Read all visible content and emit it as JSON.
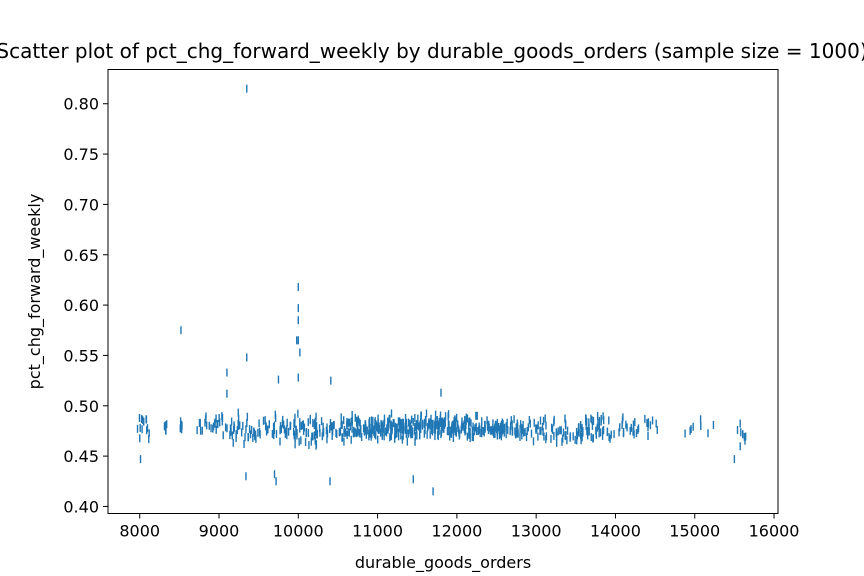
{
  "chart_data": {
    "type": "scatter",
    "title": "Scatter plot of pct_chg_forward_weekly by durable_goods_orders (sample size = 1000)",
    "xlabel": "durable_goods_orders",
    "ylabel": "pct_chg_forward_weekly",
    "xlim": [
      7600,
      16050
    ],
    "ylim": [
      0.393,
      0.834
    ],
    "xticks": [
      8000,
      9000,
      10000,
      11000,
      12000,
      13000,
      14000,
      15000,
      16000
    ],
    "xtick_labels": [
      "8000",
      "9000",
      "10000",
      "11000",
      "12000",
      "13000",
      "14000",
      "15000",
      "16000"
    ],
    "yticks": [
      0.4,
      0.45,
      0.5,
      0.55,
      0.6,
      0.65,
      0.7,
      0.75,
      0.8
    ],
    "ytick_labels": [
      "0.40",
      "0.45",
      "0.50",
      "0.55",
      "0.60",
      "0.65",
      "0.70",
      "0.75",
      "0.80"
    ],
    "grid": false,
    "marker": "|",
    "color": "#1f77b4",
    "outliers": [
      {
        "x": 9350,
        "y": 0.815
      },
      {
        "x": 10000,
        "y": 0.618
      },
      {
        "x": 10000,
        "y": 0.597
      },
      {
        "x": 10000,
        "y": 0.585
      },
      {
        "x": 10000,
        "y": 0.565
      },
      {
        "x": 9980,
        "y": 0.565
      },
      {
        "x": 10020,
        "y": 0.553
      },
      {
        "x": 8520,
        "y": 0.575
      },
      {
        "x": 9350,
        "y": 0.548
      },
      {
        "x": 9100,
        "y": 0.533
      },
      {
        "x": 9100,
        "y": 0.512
      },
      {
        "x": 9750,
        "y": 0.526
      },
      {
        "x": 10000,
        "y": 0.528
      },
      {
        "x": 10410,
        "y": 0.525
      },
      {
        "x": 11800,
        "y": 0.513
      },
      {
        "x": 9700,
        "y": 0.432
      },
      {
        "x": 9720,
        "y": 0.425
      },
      {
        "x": 9340,
        "y": 0.43
      },
      {
        "x": 10400,
        "y": 0.425
      },
      {
        "x": 11450,
        "y": 0.427
      },
      {
        "x": 11700,
        "y": 0.415
      },
      {
        "x": 8010,
        "y": 0.447
      },
      {
        "x": 15500,
        "y": 0.447
      }
    ],
    "density_bins": [
      {
        "x0": 7950,
        "x1": 8150,
        "n": 14,
        "center": 0.479,
        "spread": 0.012
      },
      {
        "x0": 8300,
        "x1": 8350,
        "n": 8,
        "center": 0.477,
        "spread": 0.006
      },
      {
        "x0": 8500,
        "x1": 8550,
        "n": 5,
        "center": 0.479,
        "spread": 0.004
      },
      {
        "x0": 8700,
        "x1": 8950,
        "n": 14,
        "center": 0.482,
        "spread": 0.007
      },
      {
        "x0": 8950,
        "x1": 9250,
        "n": 30,
        "center": 0.478,
        "spread": 0.011
      },
      {
        "x0": 9250,
        "x1": 9500,
        "n": 20,
        "center": 0.476,
        "spread": 0.01
      },
      {
        "x0": 9500,
        "x1": 9950,
        "n": 38,
        "center": 0.477,
        "spread": 0.01
      },
      {
        "x0": 9950,
        "x1": 10250,
        "n": 46,
        "center": 0.477,
        "spread": 0.012
      },
      {
        "x0": 10250,
        "x1": 10550,
        "n": 28,
        "center": 0.476,
        "spread": 0.01
      },
      {
        "x0": 10550,
        "x1": 11000,
        "n": 85,
        "center": 0.478,
        "spread": 0.01
      },
      {
        "x0": 11000,
        "x1": 11500,
        "n": 120,
        "center": 0.478,
        "spread": 0.009
      },
      {
        "x0": 11500,
        "x1": 12000,
        "n": 125,
        "center": 0.479,
        "spread": 0.009
      },
      {
        "x0": 12000,
        "x1": 12600,
        "n": 105,
        "center": 0.478,
        "spread": 0.008
      },
      {
        "x0": 12600,
        "x1": 13100,
        "n": 55,
        "center": 0.476,
        "spread": 0.008
      },
      {
        "x0": 13100,
        "x1": 13600,
        "n": 50,
        "center": 0.474,
        "spread": 0.009
      },
      {
        "x0": 13600,
        "x1": 14100,
        "n": 48,
        "center": 0.479,
        "spread": 0.01
      },
      {
        "x0": 14100,
        "x1": 14550,
        "n": 24,
        "center": 0.477,
        "spread": 0.008
      },
      {
        "x0": 14850,
        "x1": 15250,
        "n": 8,
        "center": 0.48,
        "spread": 0.006
      },
      {
        "x0": 15500,
        "x1": 15650,
        "n": 9,
        "center": 0.474,
        "spread": 0.01
      }
    ]
  }
}
